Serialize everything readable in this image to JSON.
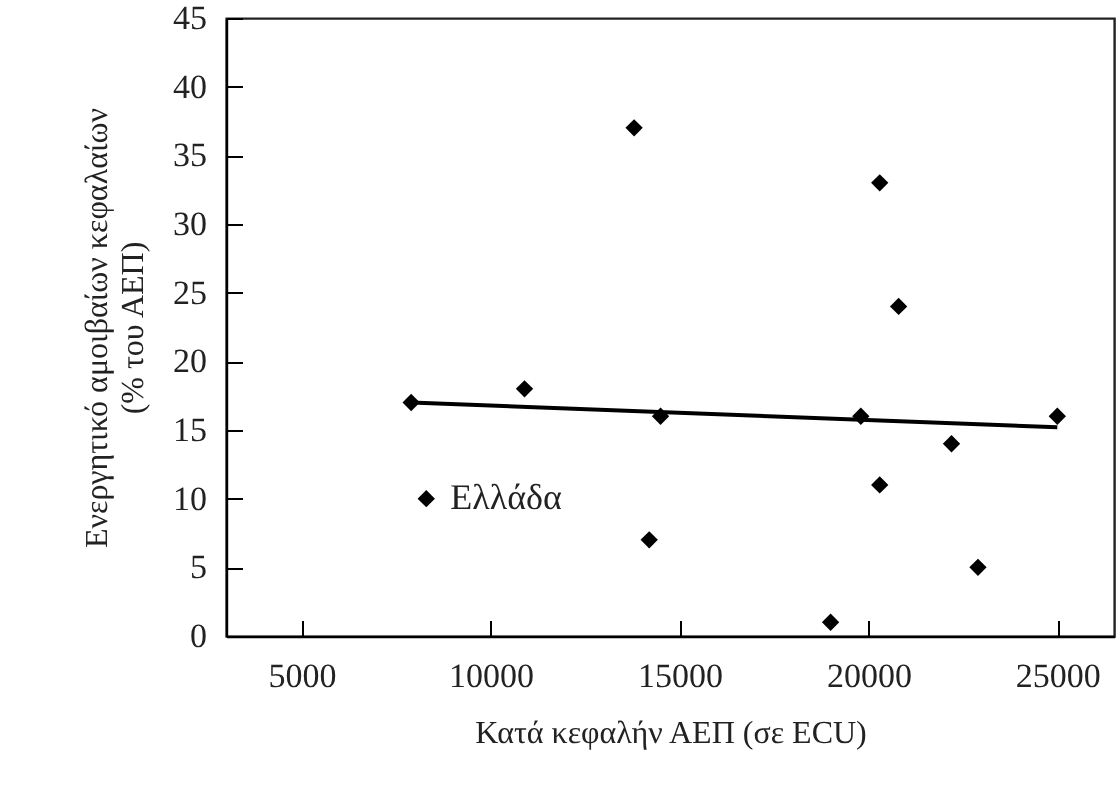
{
  "chart_data": {
    "type": "scatter",
    "xlabel": "Κατά κεφαλήν ΑΕΠ  (σε ECU)",
    "ylabel": "Ενεργητικό αμοιβαίων κεφαλαίων\n(% του ΑΕΠ)",
    "xlim": [
      3000,
      26500
    ],
    "xticks": [
      5000,
      10000,
      15000,
      20000,
      25000
    ],
    "ylim": [
      0,
      45
    ],
    "yticks": [
      0,
      5,
      10,
      15,
      20,
      25,
      30,
      35,
      40,
      45
    ],
    "grid": false,
    "series": [
      {
        "type": "scatter",
        "marker": "diamond",
        "color": "#000000",
        "x": [
          7900,
          8300,
          10900,
          13800,
          14200,
          14500,
          19000,
          19800,
          20300,
          20300,
          20800,
          22200,
          22900,
          25000
        ],
        "values": [
          17,
          10,
          18,
          37,
          7,
          16,
          1,
          16,
          33,
          11,
          24,
          14,
          5,
          16
        ]
      },
      {
        "type": "line",
        "color": "#000000",
        "line_style": "solid",
        "x": [
          7900,
          25000
        ],
        "values": [
          17,
          15.2
        ]
      }
    ],
    "annotations": [
      {
        "text": "Ελλάδα",
        "x": 8300,
        "y": 10
      }
    ]
  }
}
